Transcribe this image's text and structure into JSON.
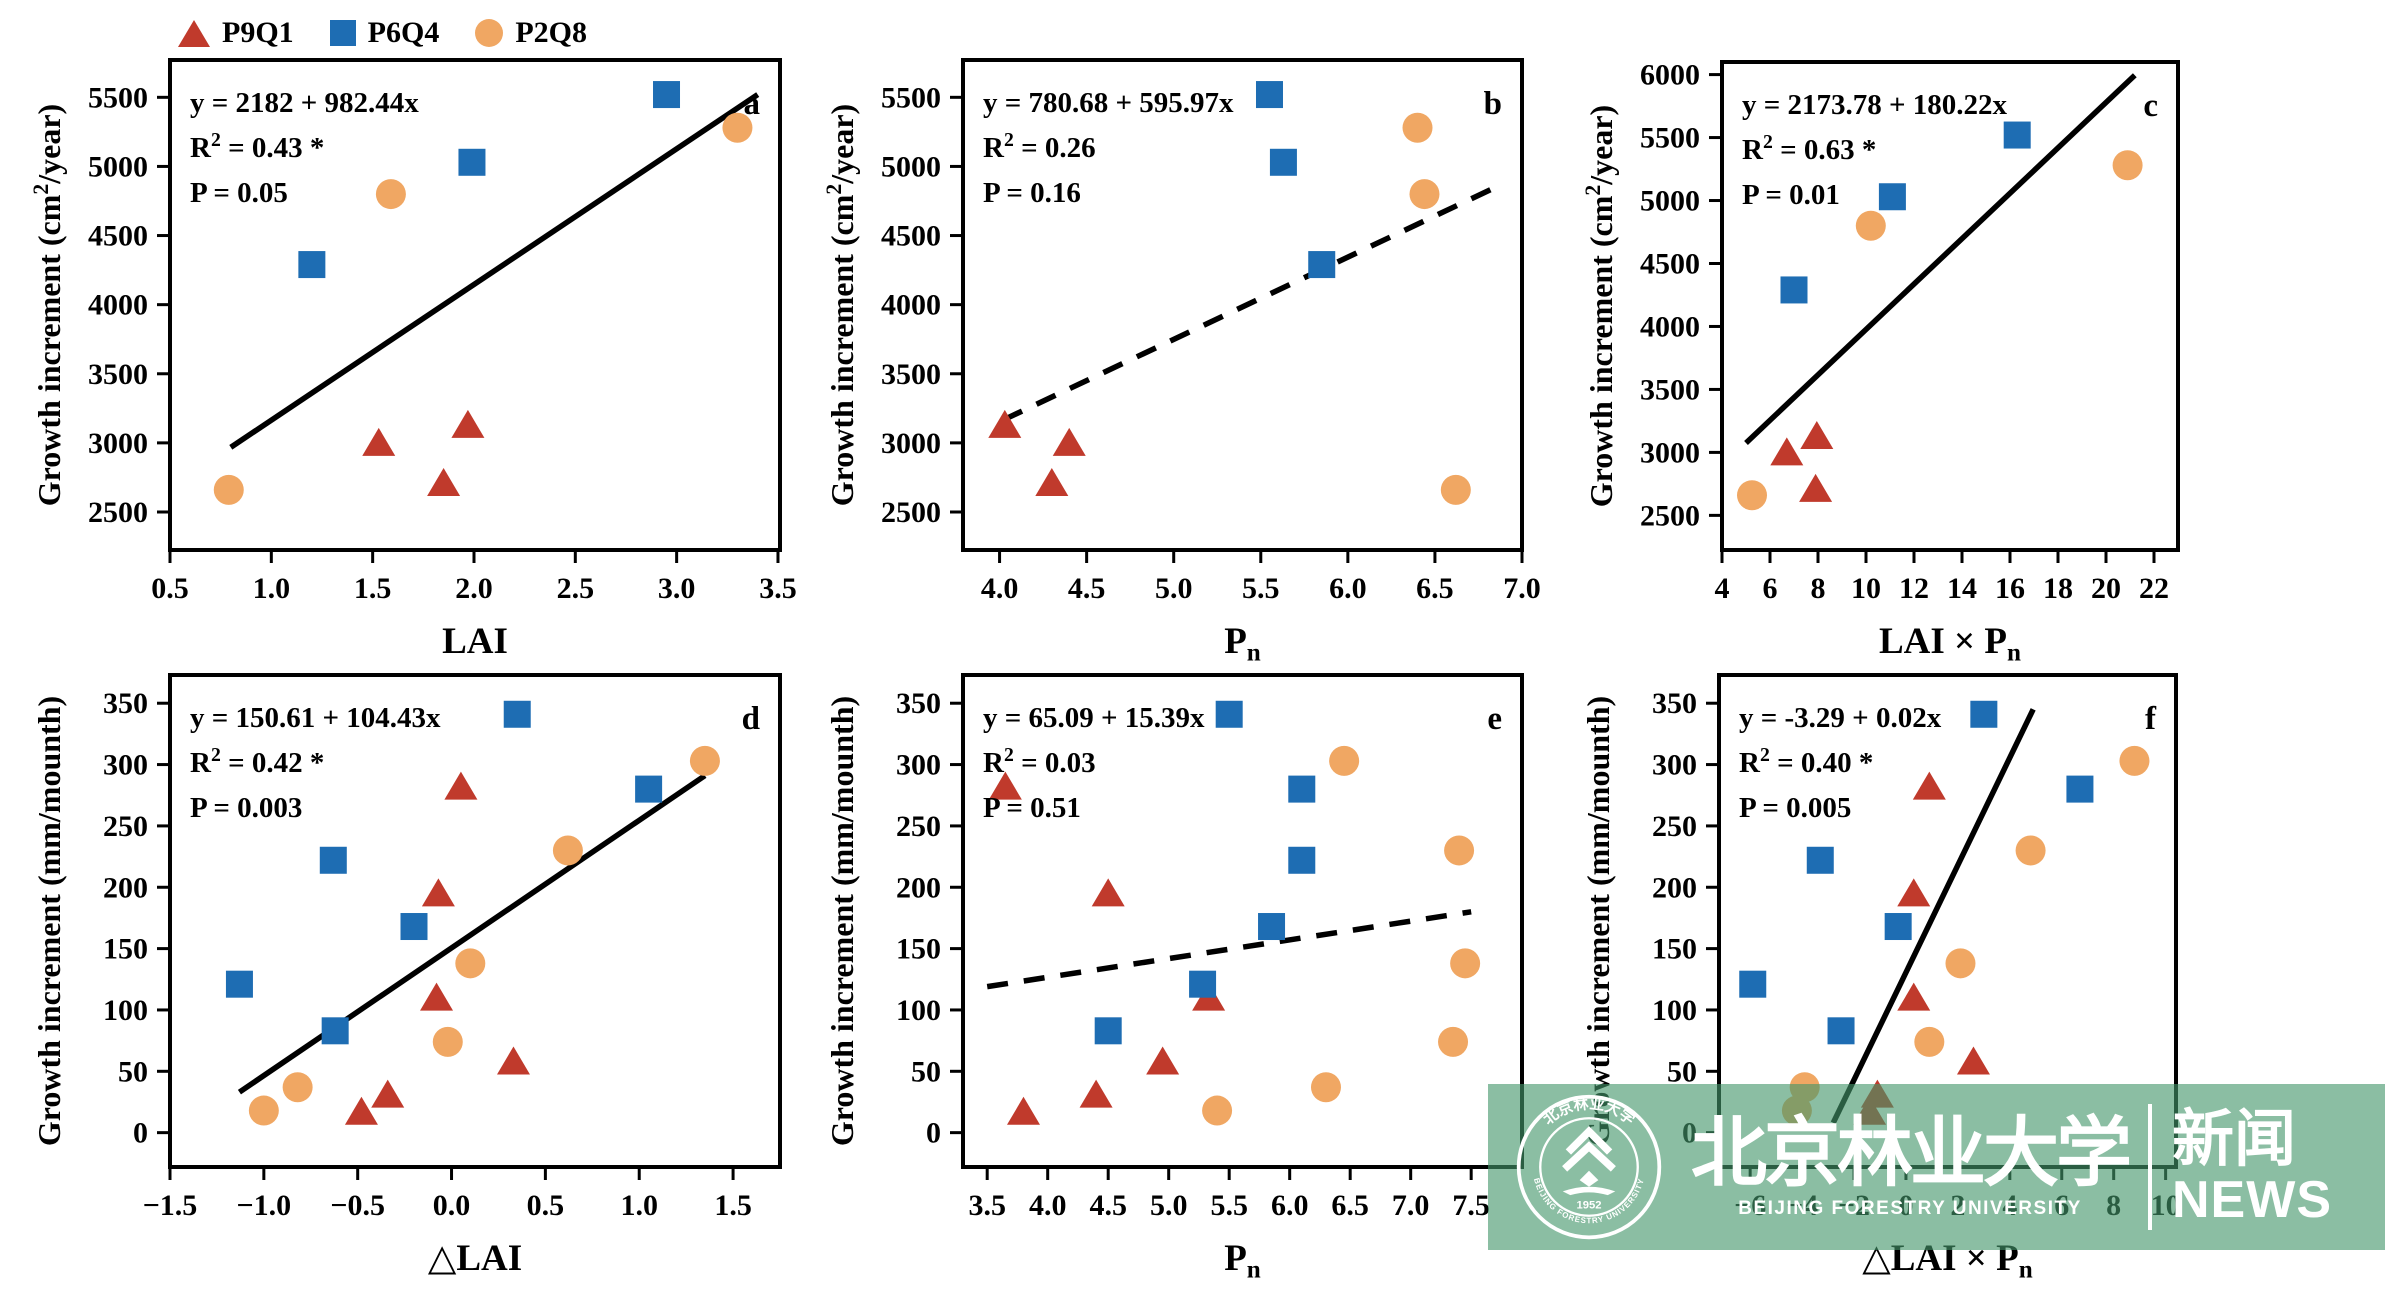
{
  "colors": {
    "red": "#c03a2c",
    "blue": "#1e6db3",
    "orange": "#f0a763",
    "line": "#000000",
    "axis": "#000000",
    "watermark_green": "rgba(68,150,106,0.62)"
  },
  "legend": {
    "items": [
      {
        "label": "P9Q1",
        "marker": "triangle",
        "color": "#c03a2c"
      },
      {
        "label": "P6Q4",
        "marker": "square",
        "color": "#1e6db3"
      },
      {
        "label": "P2Q8",
        "marker": "circle",
        "color": "#f0a763"
      }
    ]
  },
  "watermark": {
    "cn_name": "北京林业大学",
    "en_name": "BEIJING FORESTRY UNIVERSITY",
    "news_cn": "新闻",
    "news_en": "NEWS",
    "seal_cn": "北京林业大学",
    "seal_en": "BEIJING FORESTRY UNIVERSITY",
    "seal_year": "1952"
  },
  "chart_data": [
    {
      "panel": "a",
      "type": "scatter",
      "xlabel": "LAI",
      "ylabel": "Growth increment (cm^2/year)",
      "annotation": {
        "equation": "y = 2182 + 982.44x",
        "r2": "R^2 = 0.43 *",
        "p": "P = 0.05"
      },
      "xlim": [
        0.5,
        3.51
      ],
      "ylim": [
        2225,
        5770
      ],
      "xticks": [
        0.5,
        1.0,
        1.5,
        2.0,
        2.5,
        3.0,
        3.5
      ],
      "xtick_decimals": 1,
      "yticks": [
        2500,
        3000,
        3500,
        4000,
        4500,
        5000,
        5500
      ],
      "regression": {
        "style": "solid",
        "points": [
          [
            0.8,
            2968
          ],
          [
            3.4,
            5520
          ]
        ]
      },
      "series": [
        {
          "name": "P9Q1",
          "marker": "triangle",
          "color": "#c03a2c",
          "points": [
            [
              1.97,
              3130
            ],
            [
              1.53,
              3000
            ],
            [
              1.85,
              2710
            ]
          ]
        },
        {
          "name": "P6Q4",
          "marker": "square",
          "color": "#1e6db3",
          "points": [
            [
              2.95,
              5520
            ],
            [
              1.99,
              5030
            ],
            [
              1.2,
              4290
            ]
          ]
        },
        {
          "name": "P2Q8",
          "marker": "circle",
          "color": "#f0a763",
          "points": [
            [
              3.3,
              5280
            ],
            [
              1.59,
              4800
            ],
            [
              0.79,
              2660
            ]
          ]
        }
      ]
    },
    {
      "panel": "b",
      "type": "scatter",
      "xlabel": "P_n",
      "ylabel": "Growth increment (cm^2/year)",
      "annotation": {
        "equation": "y = 780.68 + 595.97x",
        "r2": "R^2 = 0.26",
        "p": "P = 0.16"
      },
      "xlim": [
        3.79,
        7.0
      ],
      "ylim": [
        2225,
        5770
      ],
      "xticks": [
        4.0,
        4.5,
        5.0,
        5.5,
        6.0,
        6.5,
        7.0
      ],
      "xtick_decimals": 1,
      "yticks": [
        2500,
        3000,
        3500,
        4000,
        4500,
        5000,
        5500
      ],
      "regression": {
        "style": "dashed",
        "points": [
          [
            4.02,
            3165
          ],
          [
            6.9,
            4880
          ]
        ]
      },
      "series": [
        {
          "name": "P9Q1",
          "marker": "triangle",
          "color": "#c03a2c",
          "points": [
            [
              4.03,
              3130
            ],
            [
              4.4,
              3000
            ],
            [
              4.3,
              2710
            ]
          ]
        },
        {
          "name": "P6Q4",
          "marker": "square",
          "color": "#1e6db3",
          "points": [
            [
              5.55,
              5520
            ],
            [
              5.63,
              5030
            ],
            [
              5.85,
              4290
            ]
          ]
        },
        {
          "name": "P2Q8",
          "marker": "circle",
          "color": "#f0a763",
          "points": [
            [
              6.4,
              5280
            ],
            [
              6.44,
              4800
            ],
            [
              6.62,
              2660
            ]
          ]
        }
      ]
    },
    {
      "panel": "c",
      "type": "scatter",
      "xlabel": "LAI × P_n",
      "ylabel": "Growth increment (cm^2/year)",
      "annotation": {
        "equation": "y = 2173.78 + 180.22x",
        "r2": "R^2 = 0.63 *",
        "p": "P = 0.01"
      },
      "xlim": [
        4,
        23
      ],
      "ylim": [
        2225,
        6100
      ],
      "xticks": [
        4,
        6,
        8,
        10,
        12,
        14,
        16,
        18,
        20,
        22
      ],
      "xtick_decimals": 0,
      "yticks": [
        2500,
        3000,
        3500,
        4000,
        4500,
        5000,
        5500,
        6000
      ],
      "regression": {
        "style": "solid",
        "points": [
          [
            5.0,
            3075
          ],
          [
            21.2,
            5995
          ]
        ]
      },
      "series": [
        {
          "name": "P9Q1",
          "marker": "triangle",
          "color": "#c03a2c",
          "points": [
            [
              7.95,
              3130
            ],
            [
              6.7,
              3000
            ],
            [
              7.9,
              2710
            ]
          ]
        },
        {
          "name": "P6Q4",
          "marker": "square",
          "color": "#1e6db3",
          "points": [
            [
              16.3,
              5520
            ],
            [
              11.1,
              5030
            ],
            [
              7.0,
              4290
            ]
          ]
        },
        {
          "name": "P2Q8",
          "marker": "circle",
          "color": "#f0a763",
          "points": [
            [
              20.9,
              5280
            ],
            [
              10.2,
              4800
            ],
            [
              5.25,
              2660
            ]
          ]
        }
      ]
    },
    {
      "panel": "d",
      "type": "scatter",
      "xlabel": "△LAI",
      "ylabel": "Growth increment (mm/mounth)",
      "annotation": {
        "equation": "y = 150.61 + 104.43x",
        "r2": "R^2 = 0.42 *",
        "p": "P = 0.003"
      },
      "xlim": [
        -1.5,
        1.75
      ],
      "ylim": [
        -28,
        373
      ],
      "xticks": [
        -1.5,
        -1.0,
        -0.5,
        0.0,
        0.5,
        1.0,
        1.5
      ],
      "xtick_decimals": 1,
      "yticks": [
        0,
        50,
        100,
        150,
        200,
        250,
        300,
        350
      ],
      "regression": {
        "style": "solid",
        "points": [
          [
            -1.13,
            33
          ],
          [
            1.35,
            291
          ]
        ]
      },
      "series": [
        {
          "name": "P9Q1",
          "marker": "triangle",
          "color": "#c03a2c",
          "points": [
            [
              0.05,
              282
            ],
            [
              -0.07,
              195
            ],
            [
              -0.08,
              110
            ],
            [
              0.33,
              58
            ],
            [
              -0.34,
              31
            ],
            [
              -0.48,
              17
            ]
          ]
        },
        {
          "name": "P6Q4",
          "marker": "square",
          "color": "#1e6db3",
          "points": [
            [
              0.35,
              341
            ],
            [
              1.05,
              280
            ],
            [
              -0.63,
              222
            ],
            [
              -0.2,
              168
            ],
            [
              -1.13,
              121
            ],
            [
              -0.62,
              83
            ]
          ]
        },
        {
          "name": "P2Q8",
          "marker": "circle",
          "color": "#f0a763",
          "points": [
            [
              1.35,
              303
            ],
            [
              0.62,
              230
            ],
            [
              0.1,
              138
            ],
            [
              -0.02,
              74
            ],
            [
              -0.82,
              37
            ],
            [
              -1.0,
              18
            ]
          ]
        }
      ]
    },
    {
      "panel": "e",
      "type": "scatter",
      "xlabel": "P_n",
      "ylabel": "Growth increment (mm/mounth)",
      "annotation": {
        "equation": "y = 65.09 + 15.39x",
        "r2": "R^2 = 0.03",
        "p": "P = 0.51"
      },
      "xlim": [
        3.3,
        7.92
      ],
      "ylim": [
        -28,
        373
      ],
      "xticks": [
        3.5,
        4.0,
        4.5,
        5.0,
        5.5,
        6.0,
        6.5,
        7.0,
        7.5
      ],
      "xtick_decimals": 1,
      "yticks": [
        0,
        50,
        100,
        150,
        200,
        250,
        300,
        350
      ],
      "regression": {
        "style": "dashed",
        "points": [
          [
            3.5,
            119
          ],
          [
            7.5,
            180
          ]
        ]
      },
      "series": [
        {
          "name": "P9Q1",
          "marker": "triangle",
          "color": "#c03a2c",
          "points": [
            [
              3.65,
              282
            ],
            [
              4.5,
              195
            ],
            [
              5.33,
              110
            ],
            [
              4.95,
              58
            ],
            [
              4.4,
              31
            ],
            [
              3.8,
              17
            ]
          ]
        },
        {
          "name": "P6Q4",
          "marker": "square",
          "color": "#1e6db3",
          "points": [
            [
              5.5,
              341
            ],
            [
              6.1,
              280
            ],
            [
              6.1,
              222
            ],
            [
              5.85,
              168
            ],
            [
              5.28,
              121
            ],
            [
              4.5,
              83
            ]
          ]
        },
        {
          "name": "P2Q8",
          "marker": "circle",
          "color": "#f0a763",
          "points": [
            [
              6.45,
              303
            ],
            [
              7.4,
              230
            ],
            [
              7.45,
              138
            ],
            [
              7.35,
              74
            ],
            [
              6.3,
              37
            ],
            [
              5.4,
              18
            ]
          ]
        }
      ]
    },
    {
      "panel": "f",
      "type": "scatter",
      "xlabel": "△LAI × P_n",
      "ylabel": "Growth increment (mm/mounth)",
      "annotation": {
        "equation": "y = -3.29 + 0.02x",
        "r2": "R^2 = 0.40 *",
        "p": "P = 0.005"
      },
      "xlim": [
        -7.2,
        10.4
      ],
      "ylim": [
        -28,
        373
      ],
      "xticks": [
        -6,
        -4,
        -2,
        0,
        2,
        4,
        6,
        8,
        10
      ],
      "xtick_decimals": 0,
      "yticks": [
        0,
        50,
        100,
        150,
        200,
        250,
        300,
        350
      ],
      "regression": {
        "style": "solid",
        "points": [
          [
            -2.8,
            8
          ],
          [
            4.9,
            345
          ]
        ]
      },
      "series": [
        {
          "name": "P9Q1",
          "marker": "triangle",
          "color": "#c03a2c",
          "points": [
            [
              0.9,
              282
            ],
            [
              0.3,
              195
            ],
            [
              0.3,
              110
            ],
            [
              2.6,
              58
            ],
            [
              -1.1,
              31
            ],
            [
              -1.4,
              17
            ]
          ]
        },
        {
          "name": "P6Q4",
          "marker": "square",
          "color": "#1e6db3",
          "points": [
            [
              3.0,
              341
            ],
            [
              6.7,
              280
            ],
            [
              -3.3,
              222
            ],
            [
              -0.3,
              168
            ],
            [
              -5.9,
              121
            ],
            [
              -2.5,
              83
            ]
          ]
        },
        {
          "name": "P2Q8",
          "marker": "circle",
          "color": "#f0a763",
          "points": [
            [
              8.8,
              303
            ],
            [
              4.8,
              230
            ],
            [
              2.1,
              138
            ],
            [
              0.9,
              74
            ],
            [
              -3.9,
              37
            ],
            [
              -4.2,
              18
            ]
          ]
        }
      ]
    }
  ]
}
